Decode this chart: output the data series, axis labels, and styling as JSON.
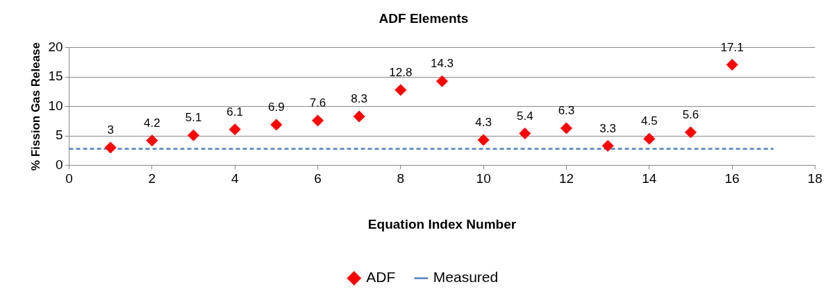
{
  "chart_data": {
    "type": "scatter",
    "title": "ADF Elements",
    "xlabel": "Equation Index Number",
    "ylabel": "% Fission Gas Release",
    "xlim": [
      0,
      18
    ],
    "xticks": [
      0,
      2,
      4,
      6,
      8,
      10,
      12,
      14,
      16,
      18
    ],
    "ylim": [
      0,
      20
    ],
    "yticks": [
      0,
      5,
      10,
      15,
      20
    ],
    "grid": "y",
    "legend": "bottom",
    "series": [
      {
        "name": "ADF",
        "type": "scatter",
        "color": "#ff0000",
        "marker": "diamond",
        "x": [
          1,
          2,
          3,
          4,
          5,
          6,
          7,
          8,
          9,
          10,
          11,
          12,
          13,
          14,
          15,
          16
        ],
        "values": [
          3,
          4.2,
          5.1,
          6.1,
          6.9,
          7.6,
          8.3,
          12.8,
          14.3,
          4.3,
          5.4,
          6.3,
          3.3,
          4.5,
          5.6,
          17.1
        ],
        "value_labels": [
          "3",
          "4.2",
          "5.1",
          "6.1",
          "6.9",
          "7.6",
          "8.3",
          "12.8",
          "14.3",
          "4.3",
          "5.4",
          "6.3",
          "3.3",
          "4.5",
          "5.6",
          "17.1"
        ]
      },
      {
        "name": "Measured",
        "type": "line",
        "color": "#4f81bd",
        "marker": "none",
        "line_style": "dashed",
        "x": [
          0,
          17
        ],
        "values": [
          2.8,
          2.8
        ]
      }
    ]
  }
}
